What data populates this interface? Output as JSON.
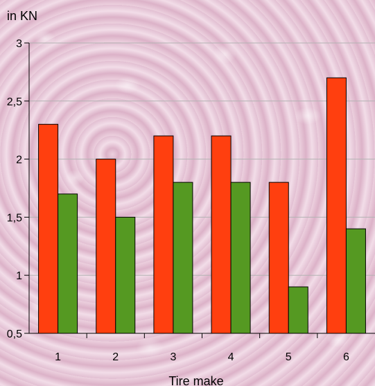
{
  "chart_data": {
    "type": "bar",
    "unit_label": "in KN",
    "xlabel": "Tire make",
    "ylabel": "",
    "categories": [
      "1",
      "2",
      "3",
      "4",
      "5",
      "6"
    ],
    "series": [
      {
        "color": "#ff3f0f",
        "values": [
          2.3,
          2.0,
          2.2,
          2.2,
          1.8,
          2.7
        ]
      },
      {
        "color": "#559922",
        "values": [
          1.7,
          1.5,
          1.8,
          1.8,
          0.9,
          1.4
        ]
      }
    ],
    "ylim": [
      0.5,
      3
    ],
    "yticks": [
      0.5,
      1,
      1.5,
      2,
      2.5,
      3
    ],
    "ytick_labels": [
      "0,5",
      "1",
      "1,5",
      "2",
      "2,5",
      "3"
    ],
    "grid": true,
    "legend": "none"
  }
}
